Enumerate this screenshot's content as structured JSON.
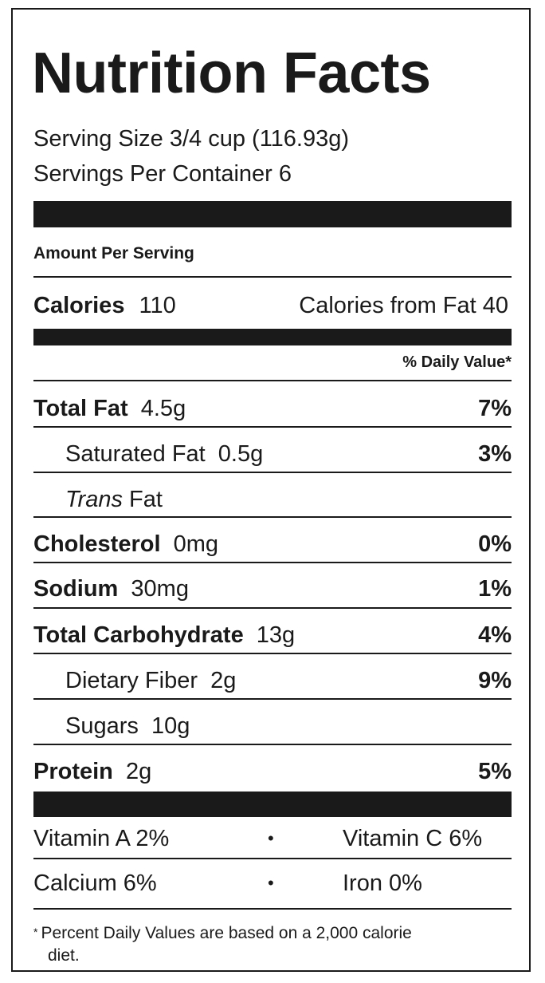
{
  "label": {
    "title": "Nutrition Facts",
    "serving_size": "Serving Size 3/4 cup (116.93g)",
    "servings_per_container": "Servings Per Container 6",
    "amount_per_serving": "Amount Per Serving",
    "calories": {
      "label": "Calories",
      "value": "110"
    },
    "calories_from_fat": "Calories from Fat 40",
    "daily_value_header": "% Daily Value*",
    "nutrients": [
      {
        "name": "Total Fat",
        "amount": "4.5g",
        "dv": "7%"
      },
      {
        "name": "Saturated Fat",
        "amount": "0.5g",
        "dv": "3%"
      },
      {
        "name_italic": "Trans",
        "name_rest": " Fat"
      },
      {
        "name": "Cholesterol",
        "amount": "0mg",
        "dv": "0%"
      },
      {
        "name": "Sodium",
        "amount": "30mg",
        "dv": "1%"
      },
      {
        "name": "Total Carbohydrate",
        "amount": "13g",
        "dv": "4%"
      },
      {
        "name": "Dietary Fiber",
        "amount": "2g",
        "dv": "9%"
      },
      {
        "name": "Sugars",
        "amount": "10g"
      },
      {
        "name": "Protein",
        "amount": "2g",
        "dv": "5%"
      }
    ],
    "vitamins": {
      "row1_left": "Vitamin A 2%",
      "row1_right": "Vitamin C 6%",
      "row2_left": "Calcium 6%",
      "row2_right": "Iron 0%",
      "separator": "•"
    },
    "footnote": {
      "marker": "*",
      "line1": "Percent Daily Values are based on a 2,000 calorie",
      "line2": "diet."
    }
  }
}
